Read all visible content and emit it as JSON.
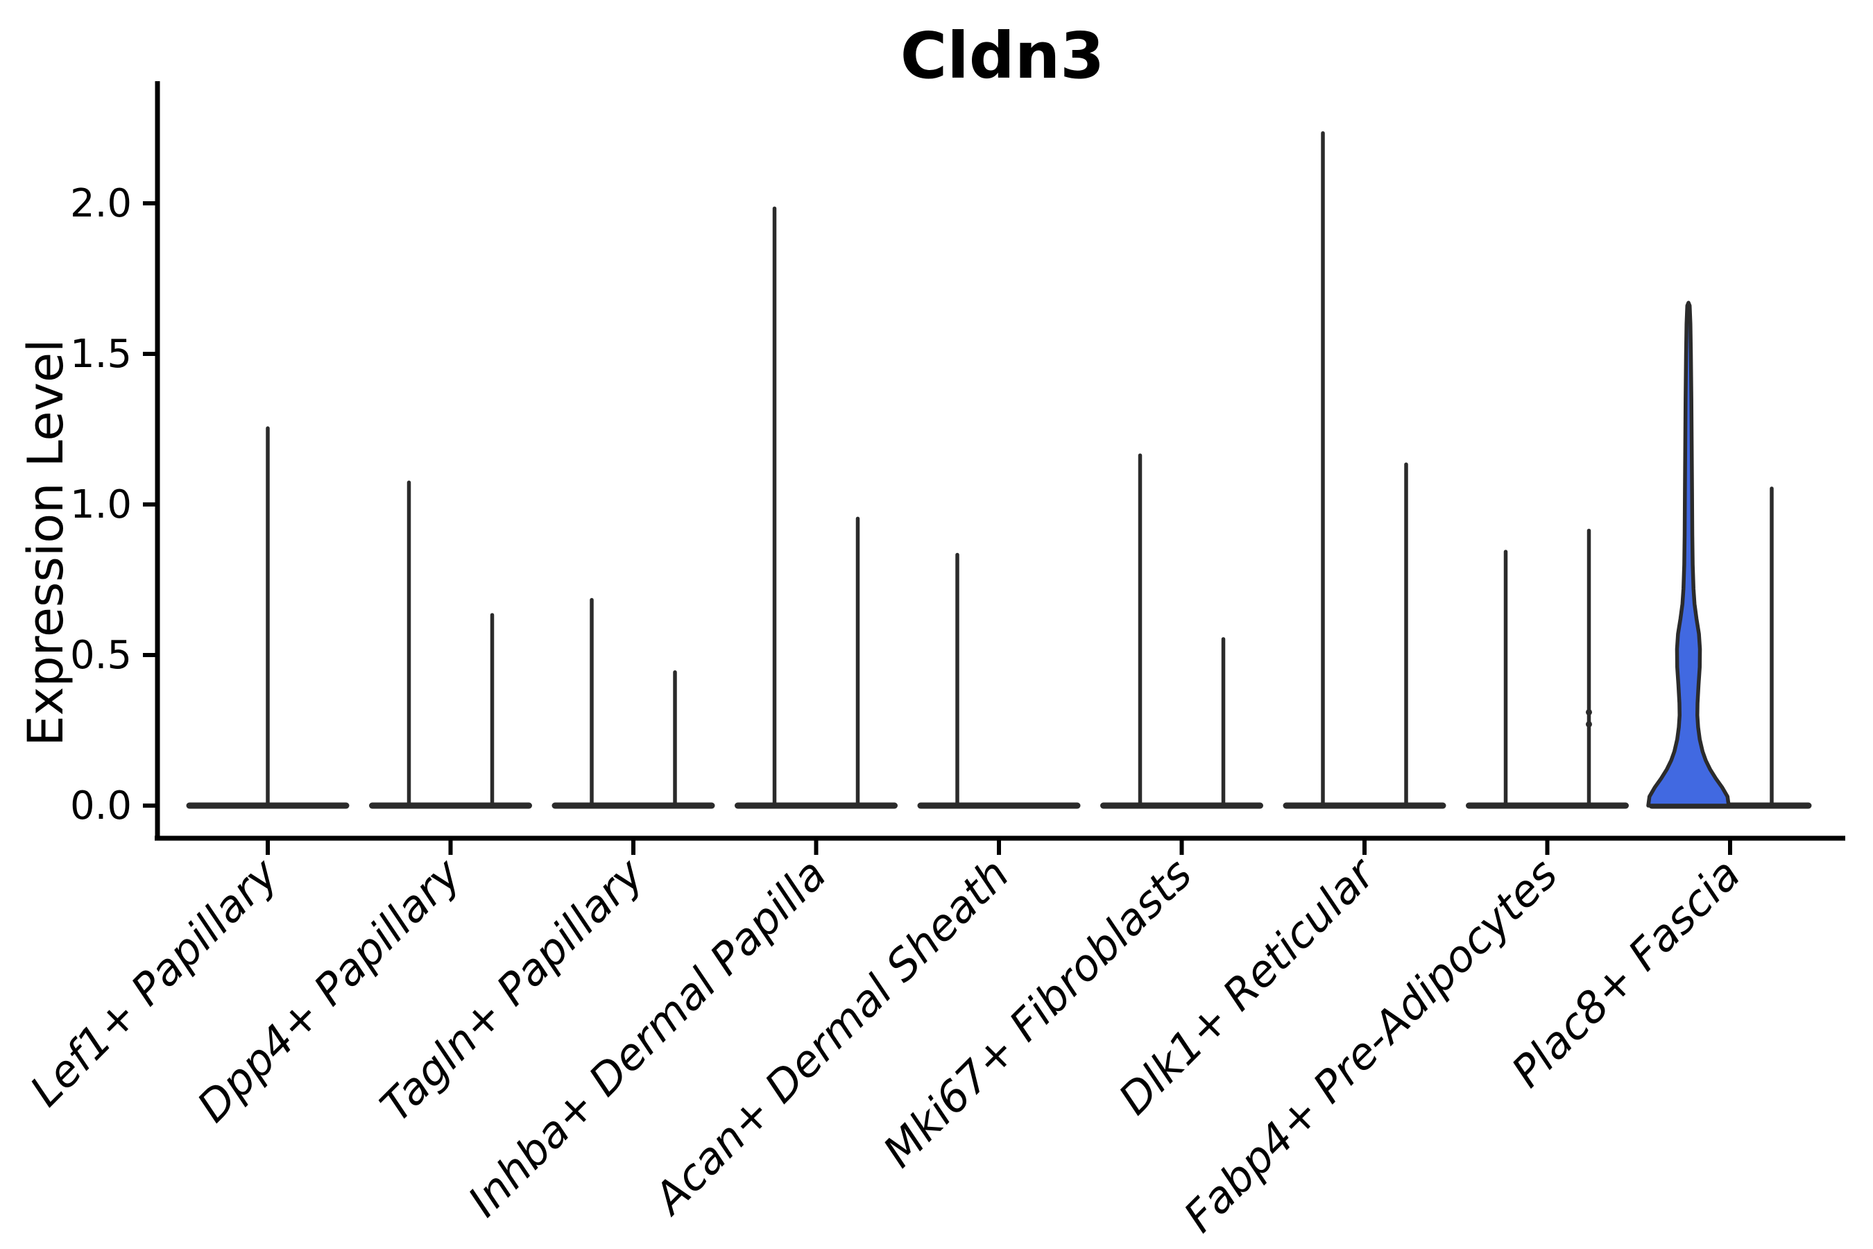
{
  "chart_data": {
    "type": "violin",
    "title": "Cldn3",
    "ylabel": "Expression Level",
    "yticks": [
      "0.0",
      "0.5",
      "1.0",
      "1.5",
      "2.0"
    ],
    "ytick_values": [
      0.0,
      0.5,
      1.0,
      1.5,
      2.0
    ],
    "ylim": [
      -0.12,
      2.41
    ],
    "grid": false,
    "legend": "none",
    "categories": [
      "Lef1+ Papillary",
      "Dpp4+ Papillary",
      "Tagln+ Papillary",
      "Inhba+ Dermal Papilla",
      "Acan+ Dermal Sheath",
      "Mki67+ Fibroblasts",
      "Dlk1+ Reticular",
      "Fabp4+ Pre-Adipocytes",
      "Plac8+ Fascia"
    ],
    "violin_groups": [
      {
        "category": "Lef1+ Papillary",
        "violins": [
          {
            "slot": "center",
            "max": 1.26
          }
        ]
      },
      {
        "category": "Dpp4+ Papillary",
        "violins": [
          {
            "slot": "left",
            "max": 1.08
          },
          {
            "slot": "right",
            "max": 0.64
          }
        ]
      },
      {
        "category": "Tagln+ Papillary",
        "violins": [
          {
            "slot": "left",
            "max": 0.69
          },
          {
            "slot": "right",
            "max": 0.45
          }
        ]
      },
      {
        "category": "Inhba+ Dermal Papilla",
        "violins": [
          {
            "slot": "left",
            "max": 1.99
          },
          {
            "slot": "right",
            "max": 0.96
          }
        ]
      },
      {
        "category": "Acan+ Dermal Sheath",
        "violins": [
          {
            "slot": "left",
            "max": 0.84
          },
          {
            "slot": "right",
            "max": 0
          }
        ]
      },
      {
        "category": "Mki67+ Fibroblasts",
        "violins": [
          {
            "slot": "left",
            "max": 1.17
          },
          {
            "slot": "right",
            "max": 0.56
          }
        ]
      },
      {
        "category": "Dlk1+ Reticular",
        "violins": [
          {
            "slot": "left",
            "max": 2.24
          },
          {
            "slot": "right",
            "max": 1.14
          }
        ]
      },
      {
        "category": "Fabp4+ Pre-Adipocytes",
        "violins": [
          {
            "slot": "left",
            "max": 0.85
          },
          {
            "slot": "right",
            "max": 0.92,
            "points": [
              0.27,
              0.31
            ]
          }
        ]
      },
      {
        "category": "Plac8+ Fascia",
        "violins": [
          {
            "slot": "left",
            "max": 1.67,
            "filled": true,
            "fill_color": "#4169E1",
            "profile": [
              [
                0.0,
                1.0
              ],
              [
                0.03,
                0.97
              ],
              [
                0.06,
                0.84
              ],
              [
                0.09,
                0.68
              ],
              [
                0.12,
                0.54
              ],
              [
                0.15,
                0.43
              ],
              [
                0.18,
                0.35
              ],
              [
                0.22,
                0.28
              ],
              [
                0.26,
                0.24
              ],
              [
                0.3,
                0.22
              ],
              [
                0.34,
                0.225
              ],
              [
                0.4,
                0.25
              ],
              [
                0.46,
                0.28
              ],
              [
                0.52,
                0.285
              ],
              [
                0.57,
                0.26
              ],
              [
                0.62,
                0.2
              ],
              [
                0.67,
                0.15
              ],
              [
                0.72,
                0.125
              ],
              [
                0.8,
                0.105
              ],
              [
                0.9,
                0.095
              ],
              [
                1.05,
                0.088
              ],
              [
                1.2,
                0.08
              ],
              [
                1.35,
                0.072
              ],
              [
                1.5,
                0.06
              ],
              [
                1.6,
                0.048
              ],
              [
                1.66,
                0.03
              ],
              [
                1.67,
                0.0
              ]
            ]
          },
          {
            "slot": "right",
            "max": 1.06
          }
        ]
      }
    ],
    "colors": {
      "violin_line": "#2b2b2b",
      "axis": "#000000",
      "highlight_fill": "#4169E1",
      "background": "#ffffff",
      "text": "#000000"
    }
  }
}
